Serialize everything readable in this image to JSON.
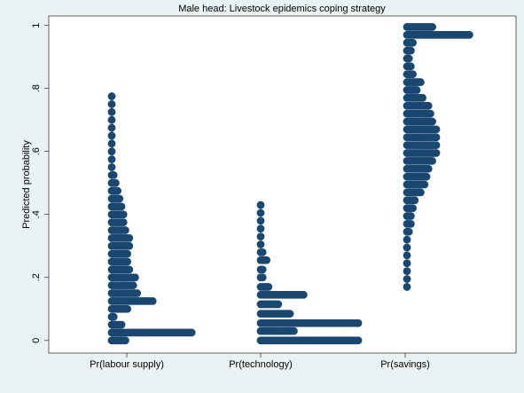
{
  "chart_data": {
    "type": "dotplot",
    "title": "Male head: Livestock epidemics coping strategy",
    "y_label": "Predicted probability",
    "categories": [
      "Pr(labour supply)",
      "Pr(technology)",
      "Pr(savings)"
    ],
    "color": "#1a476f",
    "groups": [
      {
        "bins": [
          0,
          0.025,
          0.05,
          0.075,
          0.1,
          0.125,
          0.15,
          0.175,
          0.2,
          0.225,
          0.25,
          0.275,
          0.3,
          0.325,
          0.35,
          0.375,
          0.4,
          0.425,
          0.45,
          0.475,
          0.5,
          0.525,
          0.55,
          0.575,
          0.6,
          0.625,
          0.65,
          0.675,
          0.7,
          0.725,
          0.75,
          0.775
        ],
        "counts": [
          8,
          42,
          6,
          2,
          9,
          22,
          14,
          12,
          13,
          10,
          9,
          9,
          10,
          10,
          8,
          7,
          7,
          6,
          5,
          4,
          3,
          2,
          1,
          1,
          1,
          1,
          1,
          1,
          1,
          1,
          1,
          1
        ]
      },
      {
        "bins": [
          0,
          0.03,
          0.055,
          0.085,
          0.115,
          0.145,
          0.17,
          0.2,
          0.225,
          0.255,
          0.28,
          0.305,
          0.33,
          0.355,
          0.38,
          0.405,
          0.43
        ],
        "counts": [
          51,
          18,
          51,
          16,
          10,
          23,
          5,
          2,
          2,
          4,
          2,
          1,
          1,
          1,
          1,
          1,
          1
        ]
      },
      {
        "bins": [
          0.17,
          0.195,
          0.22,
          0.245,
          0.27,
          0.295,
          0.32,
          0.345,
          0.37,
          0.395,
          0.42,
          0.445,
          0.47,
          0.495,
          0.52,
          0.545,
          0.57,
          0.595,
          0.62,
          0.645,
          0.67,
          0.695,
          0.72,
          0.745,
          0.77,
          0.795,
          0.82,
          0.845,
          0.87,
          0.895,
          0.92,
          0.945,
          0.97,
          0.995
        ],
        "counts": [
          1,
          1,
          1,
          1,
          1,
          1,
          1,
          2,
          3,
          3,
          4,
          5,
          8,
          10,
          11,
          12,
          14,
          16,
          16,
          16,
          16,
          14,
          13,
          12,
          9,
          6,
          8,
          4,
          3,
          2,
          3,
          4,
          33,
          14
        ]
      }
    ],
    "ylim": [
      -0.04,
      1.03
    ],
    "yticks": [
      0,
      {
        "value": 0.2,
        "label": ".2"
      },
      {
        "value": 0.4,
        "label": ".4"
      },
      {
        "value": 0.6,
        "label": ".6"
      },
      {
        "value": 0.8,
        "label": ".8"
      },
      1
    ]
  }
}
